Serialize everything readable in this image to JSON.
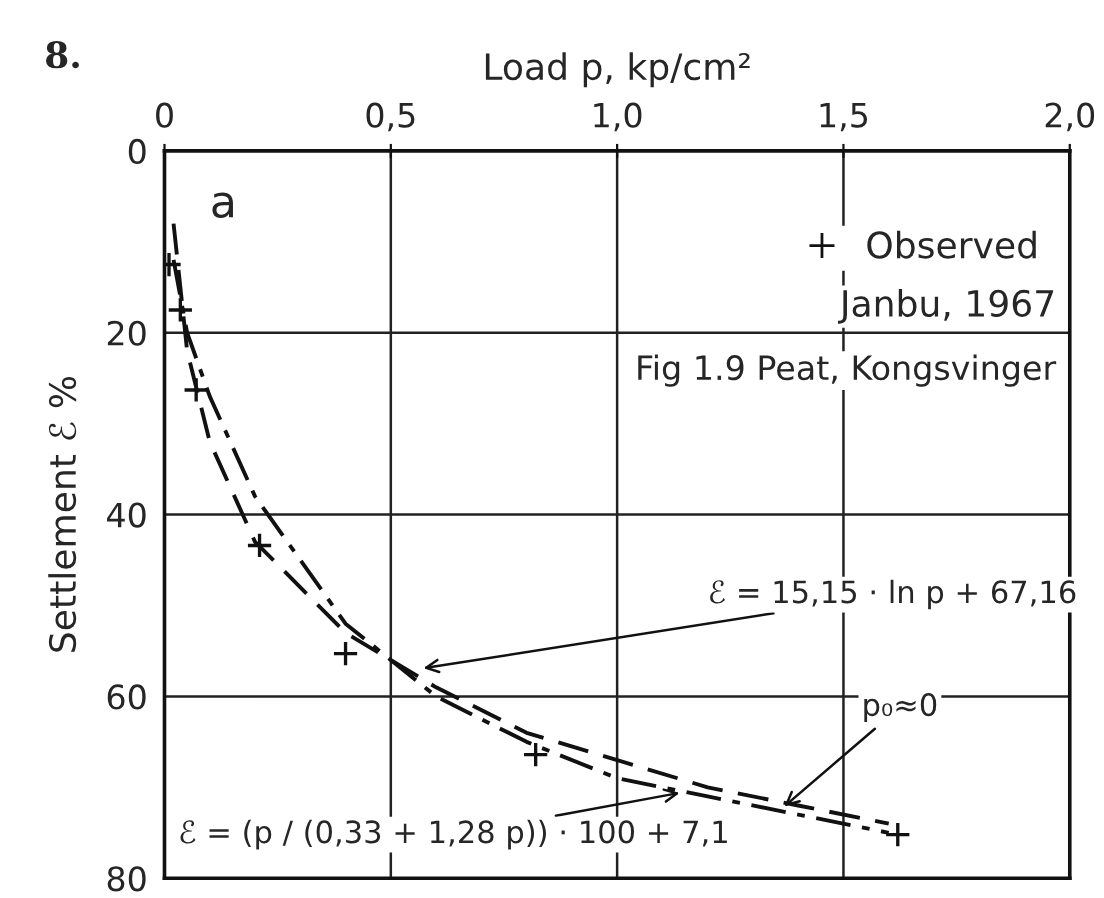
{
  "chart_data": {
    "type": "scatter",
    "xlabel": "Load p, kp/cm²",
    "ylabel": "Settlement ℰ %",
    "xlim": [
      0,
      2.0
    ],
    "ylim": [
      80,
      0
    ],
    "xticks": [
      {
        "value": 0,
        "label": "0"
      },
      {
        "value": 0.5,
        "label": "0,5"
      },
      {
        "value": 1.0,
        "label": "1,0"
      },
      {
        "value": 1.5,
        "label": "1,5"
      },
      {
        "value": 2.0,
        "label": "2,0"
      }
    ],
    "yticks": [
      0,
      20,
      40,
      60,
      80
    ],
    "grid": true,
    "legend": "top right",
    "series": [
      {
        "name": "Observed",
        "marker": "cross",
        "color": "#111111",
        "x": [
          0.01,
          0.035,
          0.07,
          0.21,
          0.4,
          0.82,
          1.62
        ],
        "values": [
          12.5,
          17.5,
          26.3,
          43.4,
          55.3,
          66.4,
          75.2
        ]
      },
      {
        "type": "line",
        "line_style": "dashed",
        "color": "#111111",
        "x": [
          0.02,
          0.05,
          0.1,
          0.2,
          0.4,
          0.6,
          0.8,
          1.0,
          1.2,
          1.4,
          1.6
        ],
        "values": [
          8,
          22,
          32,
          43,
          53,
          59,
          64,
          67,
          70,
          72,
          74
        ]
      },
      {
        "type": "line",
        "line_style": "dashdot",
        "color": "#111111",
        "x": [
          0.02,
          0.05,
          0.1,
          0.2,
          0.4,
          0.6,
          0.8,
          1.0,
          1.2,
          1.4,
          1.6
        ],
        "values": [
          12,
          20,
          27,
          38,
          52,
          60,
          65,
          69,
          71,
          73,
          75
        ]
      }
    ],
    "annotations": [
      "8.",
      "a",
      "Janbu, 1967",
      "Fig 1.9 Peat, Kongsvinger",
      {
        "text": "ℰ = 15,15 · ln p + 67,16",
        "x": 0.56,
        "y": 57
      },
      {
        "text": "ℰ = (p / (0,33 + 1,28 p)) · 100 + 7,1",
        "x": 1.15,
        "y": 70.5
      },
      {
        "text": "p₀≈0",
        "x": 1.36,
        "y": 72.5
      }
    ]
  }
}
